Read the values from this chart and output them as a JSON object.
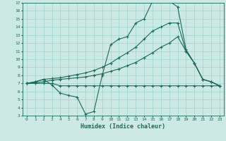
{
  "xlabel": "Humidex (Indice chaleur)",
  "bg_color": "#cce9e4",
  "grid_color": "#99d5cc",
  "line_color": "#1a6b5a",
  "xlim": [
    -0.5,
    23.5
  ],
  "ylim": [
    3,
    17
  ],
  "xticks": [
    0,
    1,
    2,
    3,
    4,
    5,
    6,
    7,
    8,
    9,
    10,
    11,
    12,
    13,
    14,
    15,
    16,
    17,
    18,
    19,
    20,
    21,
    22,
    23
  ],
  "yticks": [
    3,
    4,
    5,
    6,
    7,
    8,
    9,
    10,
    11,
    12,
    13,
    14,
    15,
    16,
    17
  ],
  "series": [
    {
      "x": [
        0,
        1,
        2,
        3,
        4,
        5,
        6,
        7,
        8,
        9,
        10,
        11,
        12,
        13,
        14,
        15,
        16,
        17,
        18,
        19,
        20,
        21,
        22,
        23
      ],
      "y": [
        7.0,
        7.0,
        7.0,
        7.0,
        6.7,
        6.7,
        6.7,
        6.7,
        6.7,
        6.7,
        6.7,
        6.7,
        6.7,
        6.7,
        6.7,
        6.7,
        6.7,
        6.7,
        6.7,
        6.7,
        6.7,
        6.7,
        6.7,
        6.7
      ]
    },
    {
      "x": [
        0,
        1,
        2,
        3,
        4,
        5,
        6,
        7,
        8,
        9,
        10,
        11,
        12,
        13,
        14,
        15,
        16,
        17,
        18,
        19,
        20,
        21,
        22,
        23
      ],
      "y": [
        7.0,
        7.1,
        7.2,
        7.4,
        7.5,
        7.6,
        7.7,
        7.8,
        8.0,
        8.2,
        8.5,
        8.8,
        9.2,
        9.6,
        10.2,
        10.8,
        11.5,
        12.0,
        12.8,
        11.0,
        9.5,
        7.5,
        7.2,
        6.7
      ]
    },
    {
      "x": [
        0,
        1,
        2,
        3,
        4,
        5,
        6,
        7,
        8,
        9,
        10,
        11,
        12,
        13,
        14,
        15,
        16,
        17,
        18,
        19,
        20,
        21,
        22,
        23
      ],
      "y": [
        7.0,
        7.2,
        7.5,
        7.6,
        7.7,
        7.9,
        8.1,
        8.3,
        8.6,
        9.0,
        9.5,
        10.2,
        10.8,
        11.5,
        12.5,
        13.5,
        14.0,
        14.5,
        14.5,
        11.0,
        9.5,
        7.5,
        7.2,
        6.7
      ]
    },
    {
      "x": [
        0,
        1,
        2,
        3,
        4,
        5,
        6,
        7,
        8,
        9,
        10,
        11,
        12,
        13,
        14,
        15,
        16,
        17,
        18,
        19,
        20,
        21,
        22,
        23
      ],
      "y": [
        7.0,
        7.2,
        7.5,
        6.8,
        5.8,
        5.5,
        5.3,
        3.2,
        3.5,
        8.0,
        11.8,
        12.5,
        12.8,
        14.5,
        15.0,
        17.2,
        17.3,
        17.2,
        16.5,
        11.2,
        9.5,
        7.5,
        7.2,
        6.7
      ]
    }
  ]
}
